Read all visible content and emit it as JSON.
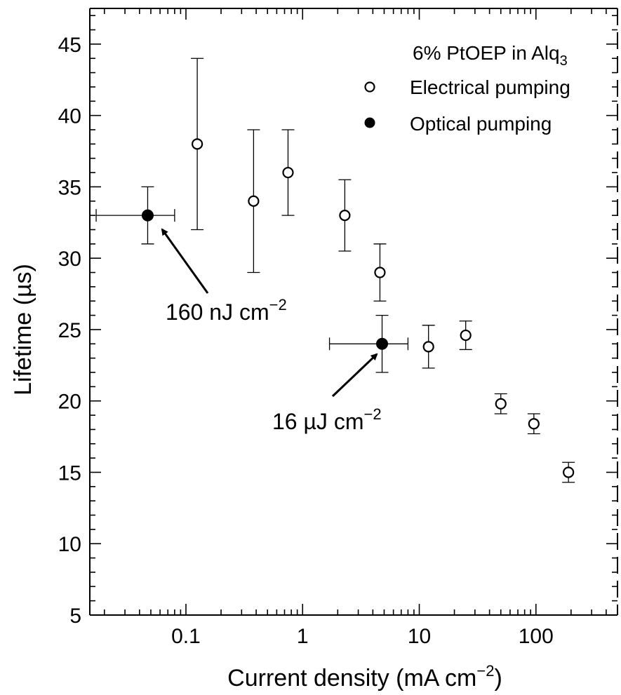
{
  "chart_data": {
    "type": "scatter",
    "x_scale": "log",
    "xlim": [
      0.015,
      500
    ],
    "ylim": [
      5,
      47.5
    ],
    "x_ticks": [
      0.1,
      1,
      10,
      100
    ],
    "x_tick_labels": [
      "0.1",
      "1",
      "10",
      "100"
    ],
    "y_ticks": [
      5,
      10,
      15,
      20,
      25,
      30,
      35,
      40,
      45
    ],
    "y_tick_labels": [
      "5",
      "10",
      "15",
      "20",
      "25",
      "30",
      "35",
      "40",
      "45"
    ],
    "xlabel": {
      "text": "Current density (mA cm",
      "sup": "−2",
      "tail": ")"
    },
    "ylabel": "Lifetime (µs)",
    "grid": false,
    "legend": {
      "placement": "top-right",
      "title": {
        "text": "6% PtOEP in Alq",
        "sub": "3"
      }
    },
    "series": [
      {
        "name": "Electrical pumping",
        "marker": "open-circle",
        "points": [
          {
            "x": 0.125,
            "y": 38,
            "ylo": 32,
            "yhi": 44
          },
          {
            "x": 0.38,
            "y": 34,
            "ylo": 29,
            "yhi": 39
          },
          {
            "x": 0.75,
            "y": 36,
            "ylo": 33,
            "yhi": 39
          },
          {
            "x": 2.3,
            "y": 33,
            "ylo": 30.5,
            "yhi": 35.5
          },
          {
            "x": 4.6,
            "y": 29,
            "ylo": 27,
            "yhi": 31
          },
          {
            "x": 12,
            "y": 23.8,
            "ylo": 22.3,
            "yhi": 25.3
          },
          {
            "x": 25,
            "y": 24.6,
            "ylo": 23.6,
            "yhi": 25.6
          },
          {
            "x": 50,
            "y": 19.8,
            "ylo": 19.1,
            "yhi": 20.5
          },
          {
            "x": 96,
            "y": 18.4,
            "ylo": 17.7,
            "yhi": 19.1
          },
          {
            "x": 190,
            "y": 15,
            "ylo": 14.3,
            "yhi": 15.7
          }
        ]
      },
      {
        "name": "Optical pumping",
        "marker": "filled-circle",
        "points": [
          {
            "x": 0.047,
            "y": 33,
            "ylo": 31,
            "yhi": 35,
            "xlo": 0.017,
            "xhi": 0.08
          },
          {
            "x": 4.8,
            "y": 24,
            "ylo": 22,
            "yhi": 26,
            "xlo": 1.7,
            "xhi": 8.0
          }
        ]
      }
    ],
    "annotations": [
      {
        "text": "160 nJ cm",
        "sup": "−2",
        "x": 0.047,
        "y": 33
      },
      {
        "text": "16 µJ cm",
        "sup": "−2",
        "x": 4.8,
        "y": 24
      }
    ]
  }
}
